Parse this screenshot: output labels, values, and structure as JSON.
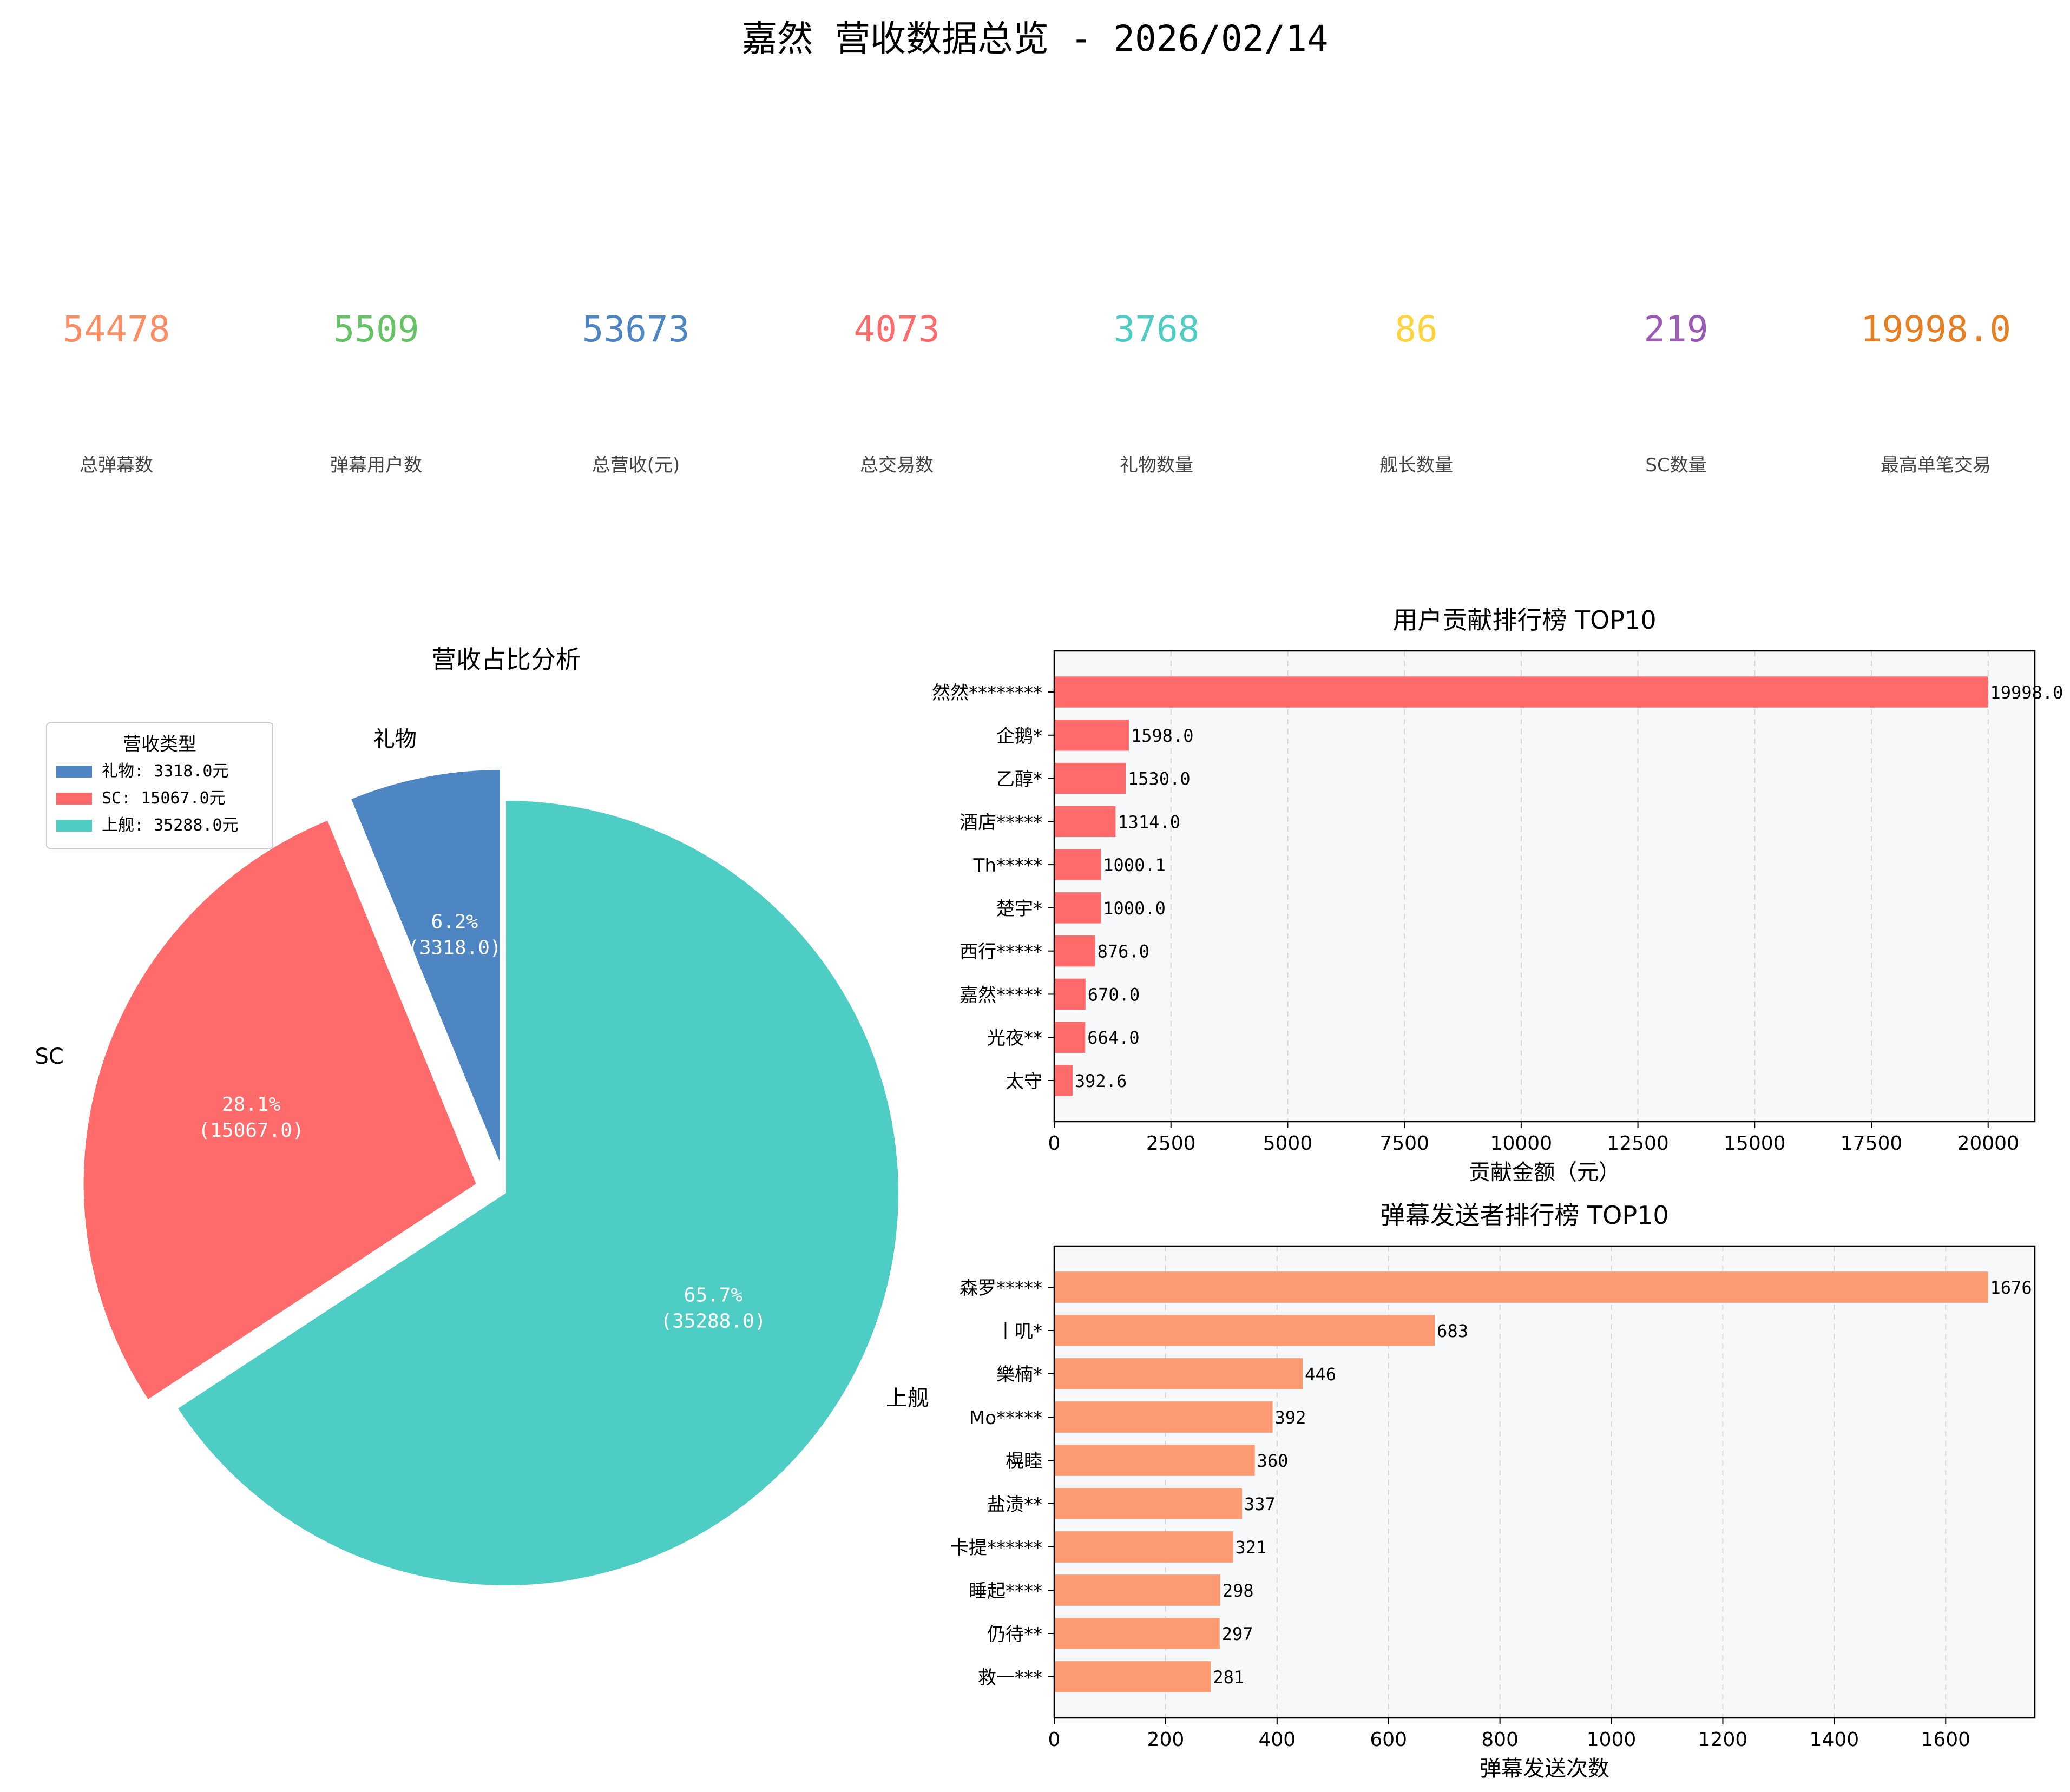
{
  "title": "嘉然 营收数据总览 - 2026/02/14",
  "stats": [
    {
      "value": "54478",
      "label": "总弹幕数",
      "color": "#FC8D62"
    },
    {
      "value": "5509",
      "label": "弹幕用户数",
      "color": "#66C266"
    },
    {
      "value": "53673",
      "label": "总营收(元)",
      "color": "#4E86C4"
    },
    {
      "value": "4073",
      "label": "总交易数",
      "color": "#FF6B6B"
    },
    {
      "value": "3768",
      "label": "礼物数量",
      "color": "#4ECDC4"
    },
    {
      "value": "86",
      "label": "舰长数量",
      "color": "#FFD43B"
    },
    {
      "value": "219",
      "label": "SC数量",
      "color": "#9B59B6"
    },
    {
      "value": "19998.0",
      "label": "最高单笔交易",
      "color": "#E67E22"
    }
  ],
  "chart_data": [
    {
      "type": "pie",
      "title": "营收占比分析",
      "legend_title": "营收类型",
      "legend_position": "top-left",
      "slices": [
        {
          "label": "礼物",
          "value": 3318.0,
          "percent": "6.2%",
          "value_text": "(3318.0)",
          "legend": "礼物: 3318.0元",
          "color": "#4E86C4"
        },
        {
          "label": "SC",
          "value": 15067.0,
          "percent": "28.1%",
          "value_text": "(15067.0)",
          "legend": "SC: 15067.0元",
          "color": "#FF6B6B"
        },
        {
          "label": "上舰",
          "value": 35288.0,
          "percent": "65.7%",
          "value_text": "(35288.0)",
          "legend": "上舰: 35288.0元",
          "color": "#4ECDC4"
        }
      ]
    },
    {
      "type": "bar",
      "orientation": "horizontal",
      "title": "用户贡献排行榜 TOP10",
      "xlabel": "贡献金额（元）",
      "xlim": [
        0,
        21000
      ],
      "xticks": [
        "0",
        "2500",
        "5000",
        "7500",
        "10000",
        "12500",
        "15000",
        "17500",
        "20000"
      ],
      "grid": "x-dashed",
      "bar_color": "#FF6B6B",
      "categories": [
        "然然********",
        "企鹅*",
        "乙醇*",
        "酒店*****",
        "Th*****",
        "楚宇*",
        "西行*****",
        "嘉然*****",
        "光夜**",
        "太守"
      ],
      "values": [
        19998.0,
        1598.0,
        1530.0,
        1314.0,
        1000.1,
        1000.0,
        876.0,
        670.0,
        664.0,
        392.6
      ],
      "value_labels": [
        "19998.0",
        "1598.0",
        "1530.0",
        "1314.0",
        "1000.1",
        "1000.0",
        "876.0",
        "670.0",
        "664.0",
        "392.6"
      ]
    },
    {
      "type": "bar",
      "orientation": "horizontal",
      "title": "弹幕发送者排行榜 TOP10",
      "xlabel": "弹幕发送次数",
      "xlim": [
        0,
        1760
      ],
      "xticks": [
        "0",
        "200",
        "400",
        "600",
        "800",
        "1000",
        "1200",
        "1400",
        "1600"
      ],
      "grid": "x-dashed",
      "bar_color": "#FC9A71",
      "categories": [
        "森罗*****",
        "丨叽*",
        "樂楠*",
        "Mo*****",
        "榥睦",
        "盐渍**",
        "卡提******",
        "睡起****",
        "仍待**",
        "救一***"
      ],
      "values": [
        1676,
        683,
        446,
        392,
        360,
        337,
        321,
        298,
        297,
        281
      ],
      "value_labels": [
        "1676",
        "683",
        "446",
        "392",
        "360",
        "337",
        "321",
        "298",
        "297",
        "281"
      ]
    }
  ]
}
